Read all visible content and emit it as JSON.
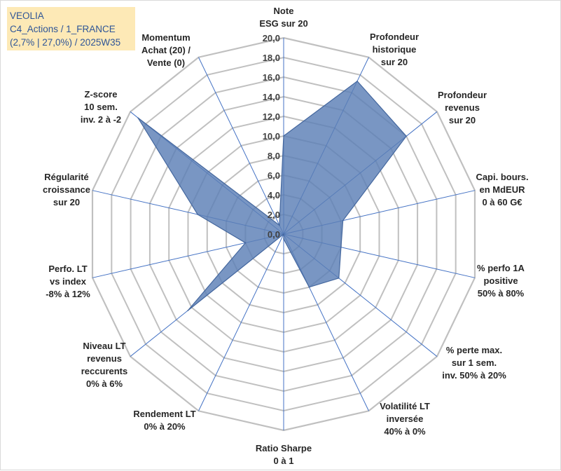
{
  "info_box": {
    "line1": "VEOLIA",
    "line2": "C4_Actions / 1_FRANCE",
    "line3": "(2,7% | 27,0%) / 2025W35"
  },
  "chart_data": {
    "type": "radar",
    "title": "",
    "rlim": [
      0,
      20
    ],
    "tick_step": 2,
    "tick_labels": [
      "0,0",
      "2,0",
      "4,0",
      "6,0",
      "8,0",
      "10,0",
      "12,0",
      "14,0",
      "16,0",
      "18,0",
      "20,0"
    ],
    "grid": true,
    "categories": [
      [
        "Note",
        "ESG sur 20"
      ],
      [
        "Profondeur",
        "historique",
        "sur 20"
      ],
      [
        "Profondeur",
        "revenus",
        "sur 20"
      ],
      [
        "Capi. bours.",
        "en MdEUR",
        "0 à 60 G€"
      ],
      [
        "% perfo 1A",
        "positive",
        "50% à 80%"
      ],
      [
        "% perte max.",
        "sur 1 sem.",
        "inv. 50% à 20%"
      ],
      [
        "Volatilité LT",
        "inversée",
        "40% à 0%"
      ],
      [
        "Ratio Sharpe",
        "0 à 1"
      ],
      [
        "Rendement LT",
        "0% à 20%"
      ],
      [
        "Niveau LT",
        "revenus",
        "reccurents",
        "0% à 6%"
      ],
      [
        "Perfo. LT",
        "vs index",
        "-8% à 12%"
      ],
      [
        "Régularité",
        "croissance",
        "sur 20"
      ],
      [
        "Z-score",
        "10 sem.",
        "inv. 2 à -2"
      ],
      [
        "Momentum",
        "Achat (20) /",
        "Vente (0)"
      ]
    ],
    "series": [
      {
        "values": [
          10.0,
          17.3,
          16.0,
          6.2,
          6.0,
          7.2,
          6.0,
          0.5,
          0.0,
          12.5,
          4.0,
          9.0,
          19.0,
          1.0
        ],
        "fill": "#5b7fb6",
        "stroke": "#44679e",
        "opacity": 0.82
      }
    ],
    "grid_color": "#c0c0c0",
    "axis_color": "#4472c4"
  }
}
